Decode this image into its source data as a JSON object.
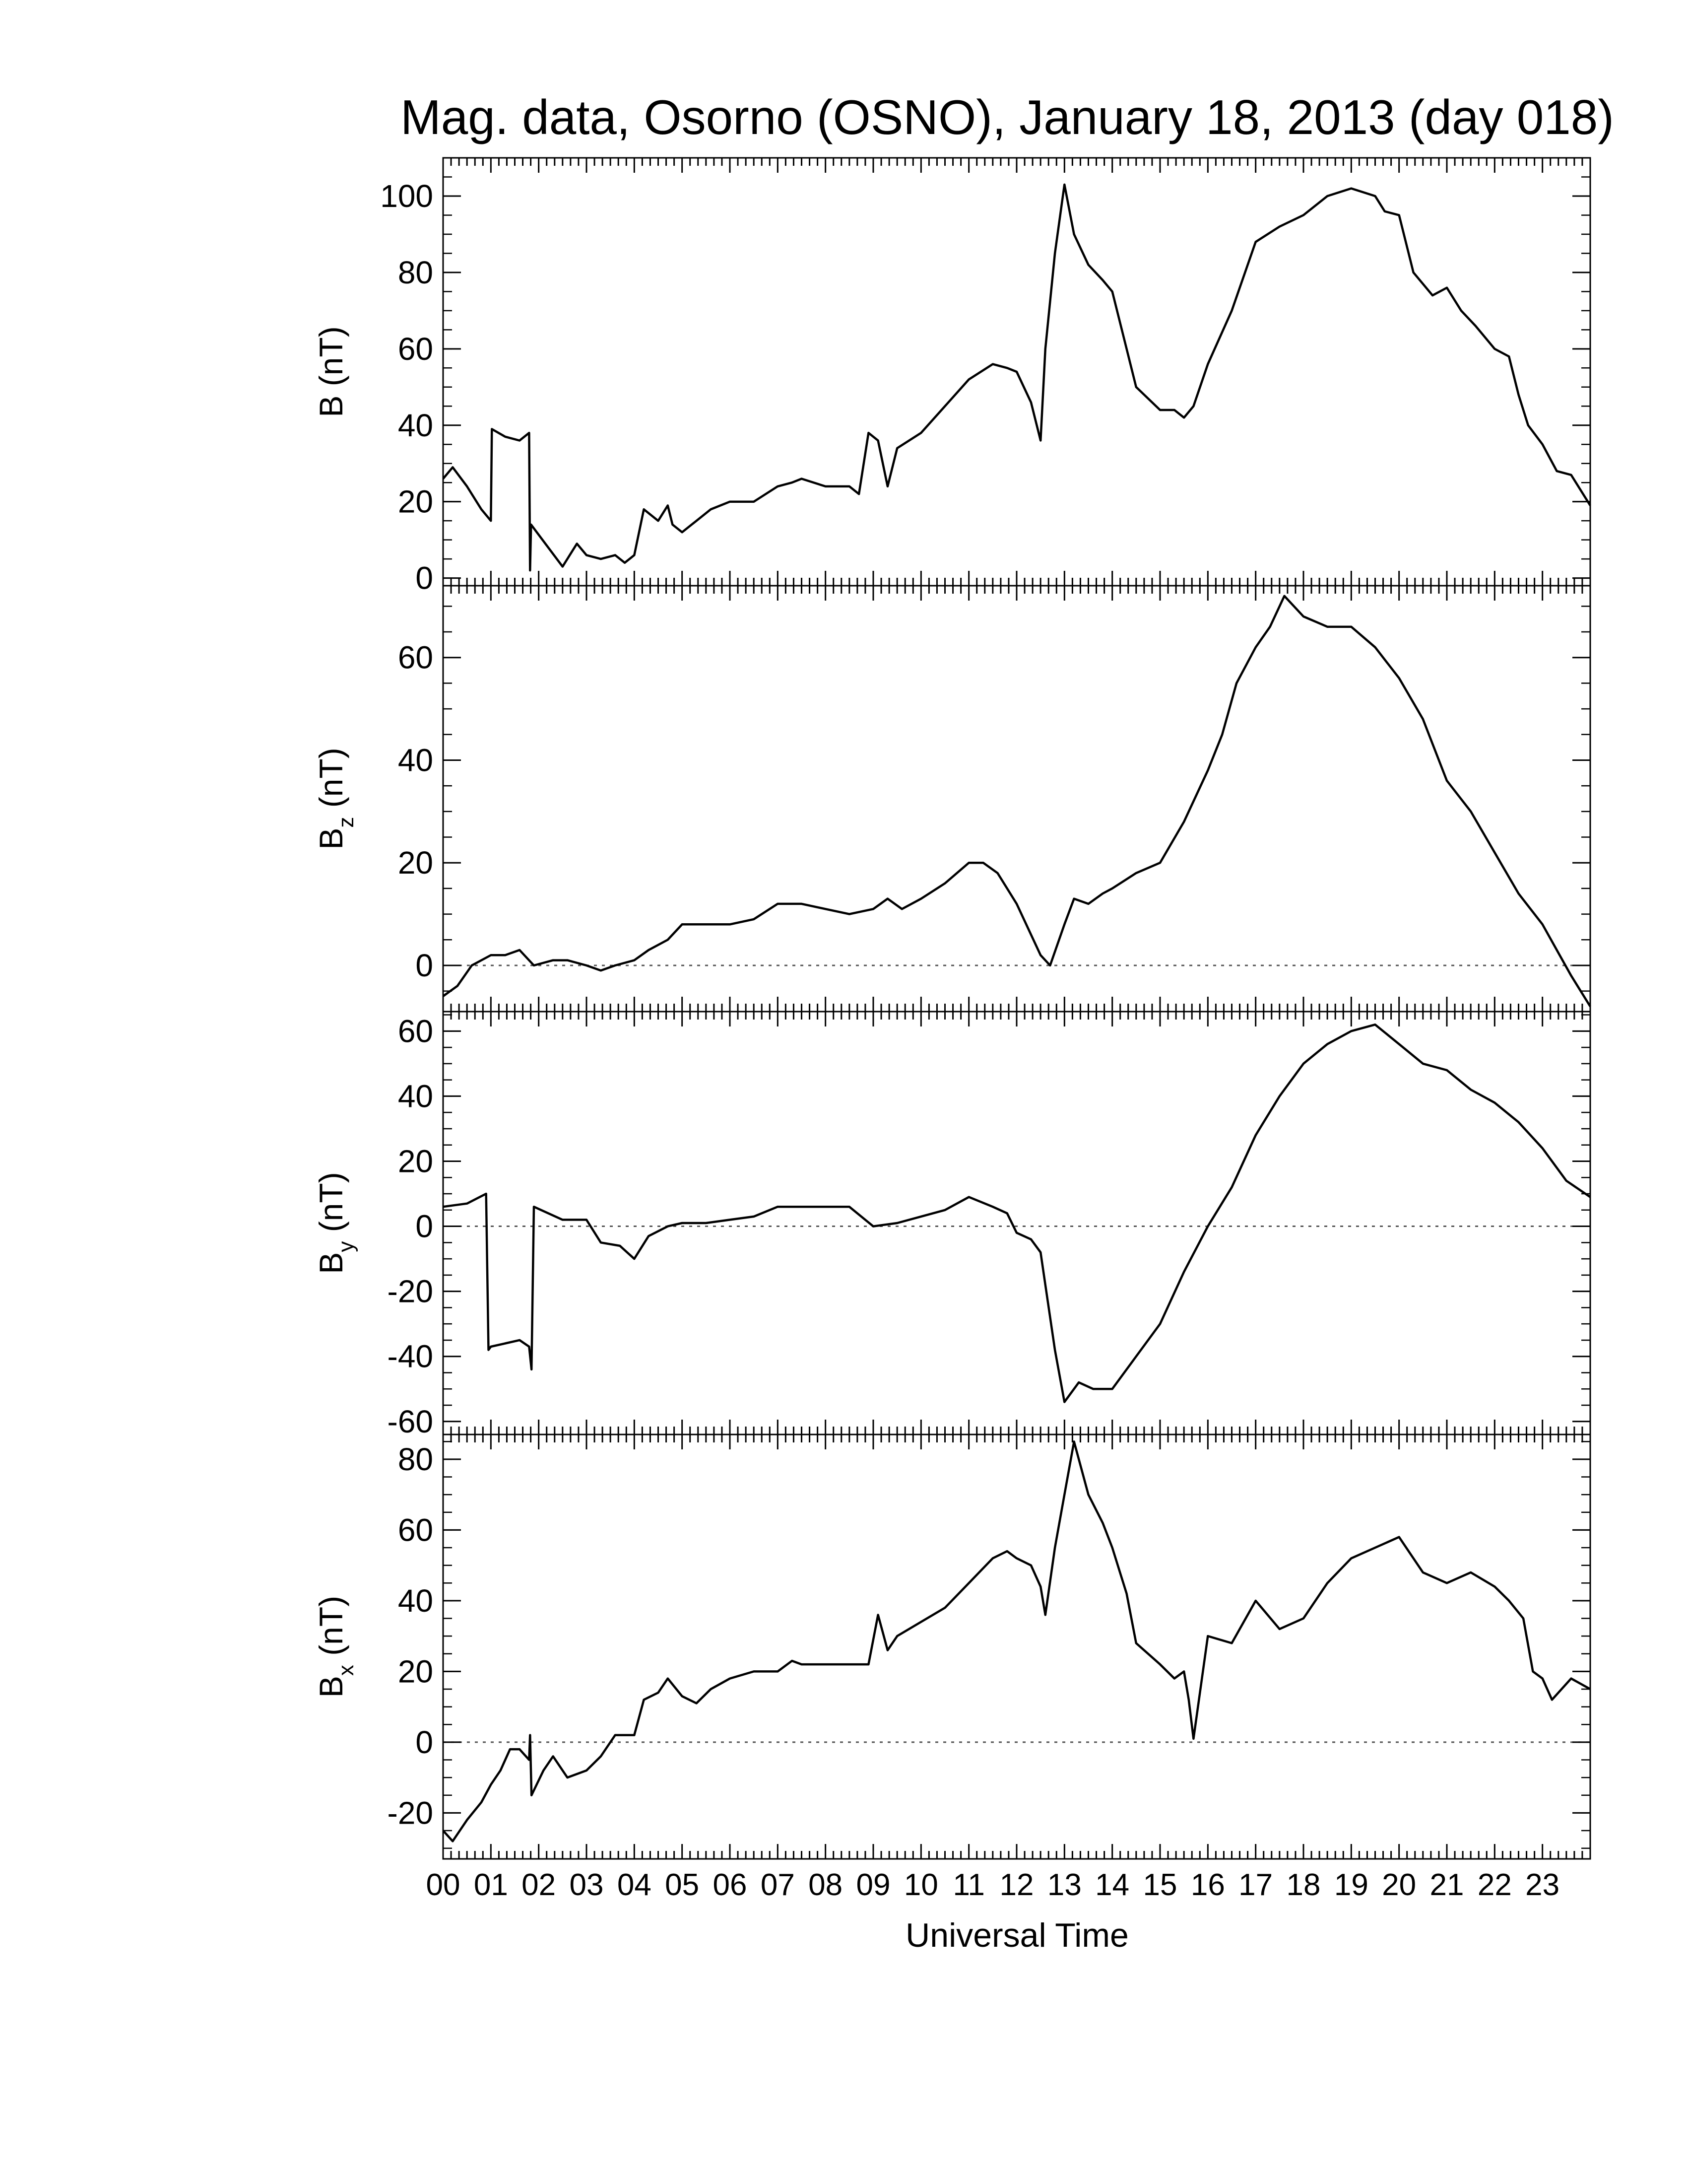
{
  "title": "Mag. data, Osorno (OSNO), January 18, 2013 (day 018)",
  "x_axis": {
    "label": "Universal Time",
    "ticks": [
      "00",
      "01",
      "02",
      "03",
      "04",
      "05",
      "06",
      "07",
      "08",
      "09",
      "10",
      "11",
      "12",
      "13",
      "14",
      "15",
      "16",
      "17",
      "18",
      "19",
      "20",
      "21",
      "22",
      "23"
    ]
  },
  "chart_data": [
    {
      "type": "line",
      "ylabel_main": "B",
      "ylabel_sub": "",
      "ylabel_unit": " (nT)",
      "ylim": [
        -2,
        110
      ],
      "yticks": [
        "0",
        "20",
        "40",
        "60",
        "80",
        "100"
      ],
      "ytick_values": [
        0,
        20,
        40,
        60,
        80,
        100
      ],
      "zero_line": false,
      "x": [
        0,
        0.2,
        0.5,
        0.8,
        1.0,
        1.02,
        1.3,
        1.6,
        1.8,
        1.82,
        1.84,
        2.2,
        2.5,
        2.8,
        3.0,
        3.3,
        3.6,
        3.8,
        4.0,
        4.2,
        4.5,
        4.7,
        4.8,
        5.0,
        5.3,
        5.6,
        6.0,
        6.5,
        7.0,
        7.3,
        7.5,
        8.0,
        8.5,
        8.7,
        8.9,
        9.1,
        9.3,
        9.5,
        10.0,
        10.5,
        11.0,
        11.5,
        11.8,
        12.0,
        12.3,
        12.5,
        12.6,
        12.8,
        13.0,
        13.2,
        13.5,
        13.8,
        14.0,
        14.3,
        14.5,
        15.0,
        15.3,
        15.5,
        15.7,
        16.0,
        16.5,
        17.0,
        17.5,
        18.0,
        18.5,
        19.0,
        19.5,
        19.7,
        20.0,
        20.3,
        20.7,
        21.0,
        21.3,
        21.6,
        22.0,
        22.3,
        22.5,
        22.7,
        23.0,
        23.3,
        23.6,
        24.0
      ],
      "values": [
        26,
        29,
        24,
        18,
        15,
        39,
        37,
        36,
        38,
        2,
        14,
        8,
        3,
        9,
        6,
        5,
        6,
        4,
        6,
        18,
        15,
        19,
        14,
        12,
        15,
        18,
        20,
        20,
        24,
        25,
        26,
        24,
        24,
        22,
        38,
        36,
        24,
        34,
        38,
        45,
        52,
        56,
        55,
        54,
        46,
        36,
        60,
        85,
        103,
        90,
        82,
        78,
        75,
        60,
        50,
        44,
        44,
        42,
        45,
        56,
        70,
        88,
        92,
        95,
        100,
        102,
        100,
        96,
        95,
        80,
        74,
        76,
        70,
        66,
        60,
        58,
        48,
        40,
        35,
        28,
        27,
        19
      ]
    },
    {
      "type": "line",
      "ylabel_main": "B",
      "ylabel_sub": "z",
      "ylabel_unit": " (nT)",
      "ylim": [
        -9,
        74
      ],
      "yticks": [
        "0",
        "20",
        "40",
        "60"
      ],
      "ytick_values": [
        0,
        20,
        40,
        60
      ],
      "zero_line": true,
      "x": [
        0,
        0.3,
        0.6,
        1.0,
        1.3,
        1.6,
        1.9,
        2.3,
        2.6,
        3.0,
        3.3,
        3.6,
        4.0,
        4.3,
        4.7,
        5.0,
        5.5,
        6.0,
        6.5,
        7.0,
        7.5,
        8.0,
        8.5,
        9.0,
        9.3,
        9.6,
        10.0,
        10.5,
        11.0,
        11.3,
        11.6,
        12.0,
        12.3,
        12.5,
        12.7,
        13.0,
        13.2,
        13.5,
        13.8,
        14.0,
        14.5,
        15.0,
        15.5,
        16.0,
        16.3,
        16.6,
        17.0,
        17.3,
        17.6,
        18.0,
        18.5,
        19.0,
        19.5,
        20.0,
        20.5,
        21.0,
        21.5,
        22.0,
        22.5,
        23.0,
        23.3,
        23.6,
        24.0
      ],
      "values": [
        -6,
        -4,
        0,
        2,
        2,
        3,
        0,
        1,
        1,
        0,
        -1,
        0,
        1,
        3,
        5,
        8,
        8,
        8,
        9,
        12,
        12,
        11,
        10,
        11,
        13,
        11,
        13,
        16,
        20,
        20,
        18,
        12,
        6,
        2,
        0,
        8,
        13,
        12,
        14,
        15,
        18,
        20,
        28,
        38,
        45,
        55,
        62,
        66,
        72,
        68,
        66,
        66,
        62,
        56,
        48,
        36,
        30,
        22,
        14,
        8,
        3,
        -2,
        -8
      ]
    },
    {
      "type": "line",
      "ylabel_main": "B",
      "ylabel_sub": "y",
      "ylabel_unit": " (nT)",
      "ylim": [
        -64,
        66
      ],
      "yticks": [
        "-60",
        "-40",
        "-20",
        "0",
        "20",
        "40",
        "60"
      ],
      "ytick_values": [
        -60,
        -40,
        -20,
        0,
        20,
        40,
        60
      ],
      "zero_line": true,
      "x": [
        0,
        0.5,
        0.9,
        0.95,
        1.0,
        1.3,
        1.6,
        1.8,
        1.85,
        1.9,
        2.2,
        2.5,
        3.0,
        3.3,
        3.7,
        4.0,
        4.3,
        4.7,
        5.0,
        5.5,
        6.0,
        6.5,
        7.0,
        7.5,
        8.0,
        8.5,
        9.0,
        9.5,
        10.0,
        10.5,
        11.0,
        11.5,
        11.8,
        12.0,
        12.3,
        12.5,
        12.6,
        12.8,
        13.0,
        13.3,
        13.6,
        14.0,
        14.5,
        15.0,
        15.5,
        16.0,
        16.5,
        17.0,
        17.5,
        18.0,
        18.5,
        19.0,
        19.5,
        20.0,
        20.5,
        21.0,
        21.5,
        22.0,
        22.5,
        23.0,
        23.5,
        24.0
      ],
      "values": [
        6,
        7,
        10,
        -38,
        -37,
        -36,
        -35,
        -37,
        -44,
        6,
        4,
        2,
        2,
        -5,
        -6,
        -10,
        -3,
        0,
        1,
        1,
        2,
        3,
        6,
        6,
        6,
        6,
        0,
        1,
        3,
        5,
        9,
        6,
        4,
        -2,
        -4,
        -8,
        -18,
        -38,
        -54,
        -48,
        -50,
        -50,
        -40,
        -30,
        -14,
        0,
        12,
        28,
        40,
        50,
        56,
        60,
        62,
        56,
        50,
        48,
        42,
        38,
        32,
        24,
        14,
        9
      ]
    },
    {
      "type": "line",
      "ylabel_main": "B",
      "ylabel_sub": "x",
      "ylabel_unit": " (nT)",
      "ylim": [
        -33,
        87
      ],
      "yticks": [
        "-20",
        "0",
        "20",
        "40",
        "60",
        "80"
      ],
      "ytick_values": [
        -20,
        0,
        20,
        40,
        60,
        80
      ],
      "zero_line": true,
      "x": [
        0,
        0.2,
        0.5,
        0.8,
        1.0,
        1.2,
        1.4,
        1.6,
        1.8,
        1.82,
        1.85,
        2.1,
        2.3,
        2.6,
        3.0,
        3.3,
        3.6,
        3.8,
        4.0,
        4.2,
        4.5,
        4.7,
        5.0,
        5.3,
        5.6,
        6.0,
        6.5,
        7.0,
        7.3,
        7.5,
        8.0,
        8.5,
        8.7,
        8.9,
        9.1,
        9.3,
        9.5,
        10.0,
        10.5,
        11.0,
        11.5,
        11.8,
        12.0,
        12.3,
        12.5,
        12.6,
        12.8,
        13.0,
        13.2,
        13.5,
        13.8,
        14.0,
        14.3,
        14.5,
        15.0,
        15.3,
        15.5,
        15.6,
        15.7,
        16.0,
        16.5,
        17.0,
        17.5,
        18.0,
        18.5,
        19.0,
        19.5,
        20.0,
        20.5,
        21.0,
        21.5,
        22.0,
        22.3,
        22.6,
        22.8,
        23.0,
        23.2,
        23.4,
        23.6,
        24.0
      ],
      "values": [
        -25,
        -28,
        -22,
        -17,
        -12,
        -8,
        -2,
        -2,
        -5,
        2,
        -15,
        -8,
        -4,
        -10,
        -8,
        -4,
        2,
        2,
        2,
        12,
        14,
        18,
        13,
        11,
        15,
        18,
        20,
        20,
        23,
        22,
        22,
        22,
        22,
        22,
        36,
        26,
        30,
        34,
        38,
        45,
        52,
        54,
        52,
        50,
        44,
        36,
        55,
        70,
        85,
        70,
        62,
        55,
        42,
        28,
        22,
        18,
        20,
        12,
        1,
        30,
        28,
        40,
        32,
        35,
        45,
        52,
        55,
        58,
        48,
        45,
        48,
        44,
        40,
        35,
        20,
        18,
        12,
        15,
        18,
        15
      ]
    }
  ]
}
